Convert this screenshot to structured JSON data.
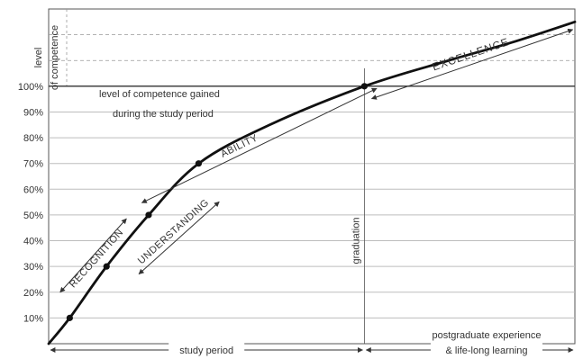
{
  "chart_data": {
    "type": "line",
    "title": "",
    "xlabel": "",
    "ylabel": "level of competence",
    "ylim": [
      0,
      130
    ],
    "xlim": [
      0,
      10
    ],
    "y_ticks": [
      "10%",
      "20%",
      "30%",
      "40%",
      "50%",
      "60%",
      "70%",
      "80%",
      "90%",
      "100%"
    ],
    "y_tick_values": [
      10,
      20,
      30,
      40,
      50,
      60,
      70,
      80,
      90,
      100
    ],
    "grid": true,
    "series": [
      {
        "name": "",
        "x": [
          0,
          0.4,
          1.1,
          1.9,
          2.85,
          4.2,
          6.0,
          7.6,
          8.8,
          10.0
        ],
        "y": [
          0,
          10,
          30,
          50,
          70,
          85,
          100,
          110,
          117,
          125
        ]
      }
    ],
    "milestones": [
      {
        "x": 0.4,
        "y": 10
      },
      {
        "x": 1.1,
        "y": 30
      },
      {
        "x": 1.9,
        "y": 50
      },
      {
        "x": 2.85,
        "y": 70
      },
      {
        "x": 6.0,
        "y": 100
      }
    ],
    "reference_line": {
      "y": 100,
      "label_line1": "level of competence gained",
      "label_line2": "during the study period"
    },
    "graduation_x": 6.0,
    "phases": {
      "recognition": "RECOGNITION",
      "understanding": "UNDERSTANDING",
      "ability": "ABILITY",
      "excellence": "EXCELLENCE"
    },
    "graduation_label": "graduation",
    "bottom_labels": {
      "study_period": "study period",
      "postgraduate_line1": "postgraduate experience",
      "postgraduate_line2": "& life-long learning"
    },
    "ylabel_lines": [
      "level",
      "of competence"
    ]
  }
}
